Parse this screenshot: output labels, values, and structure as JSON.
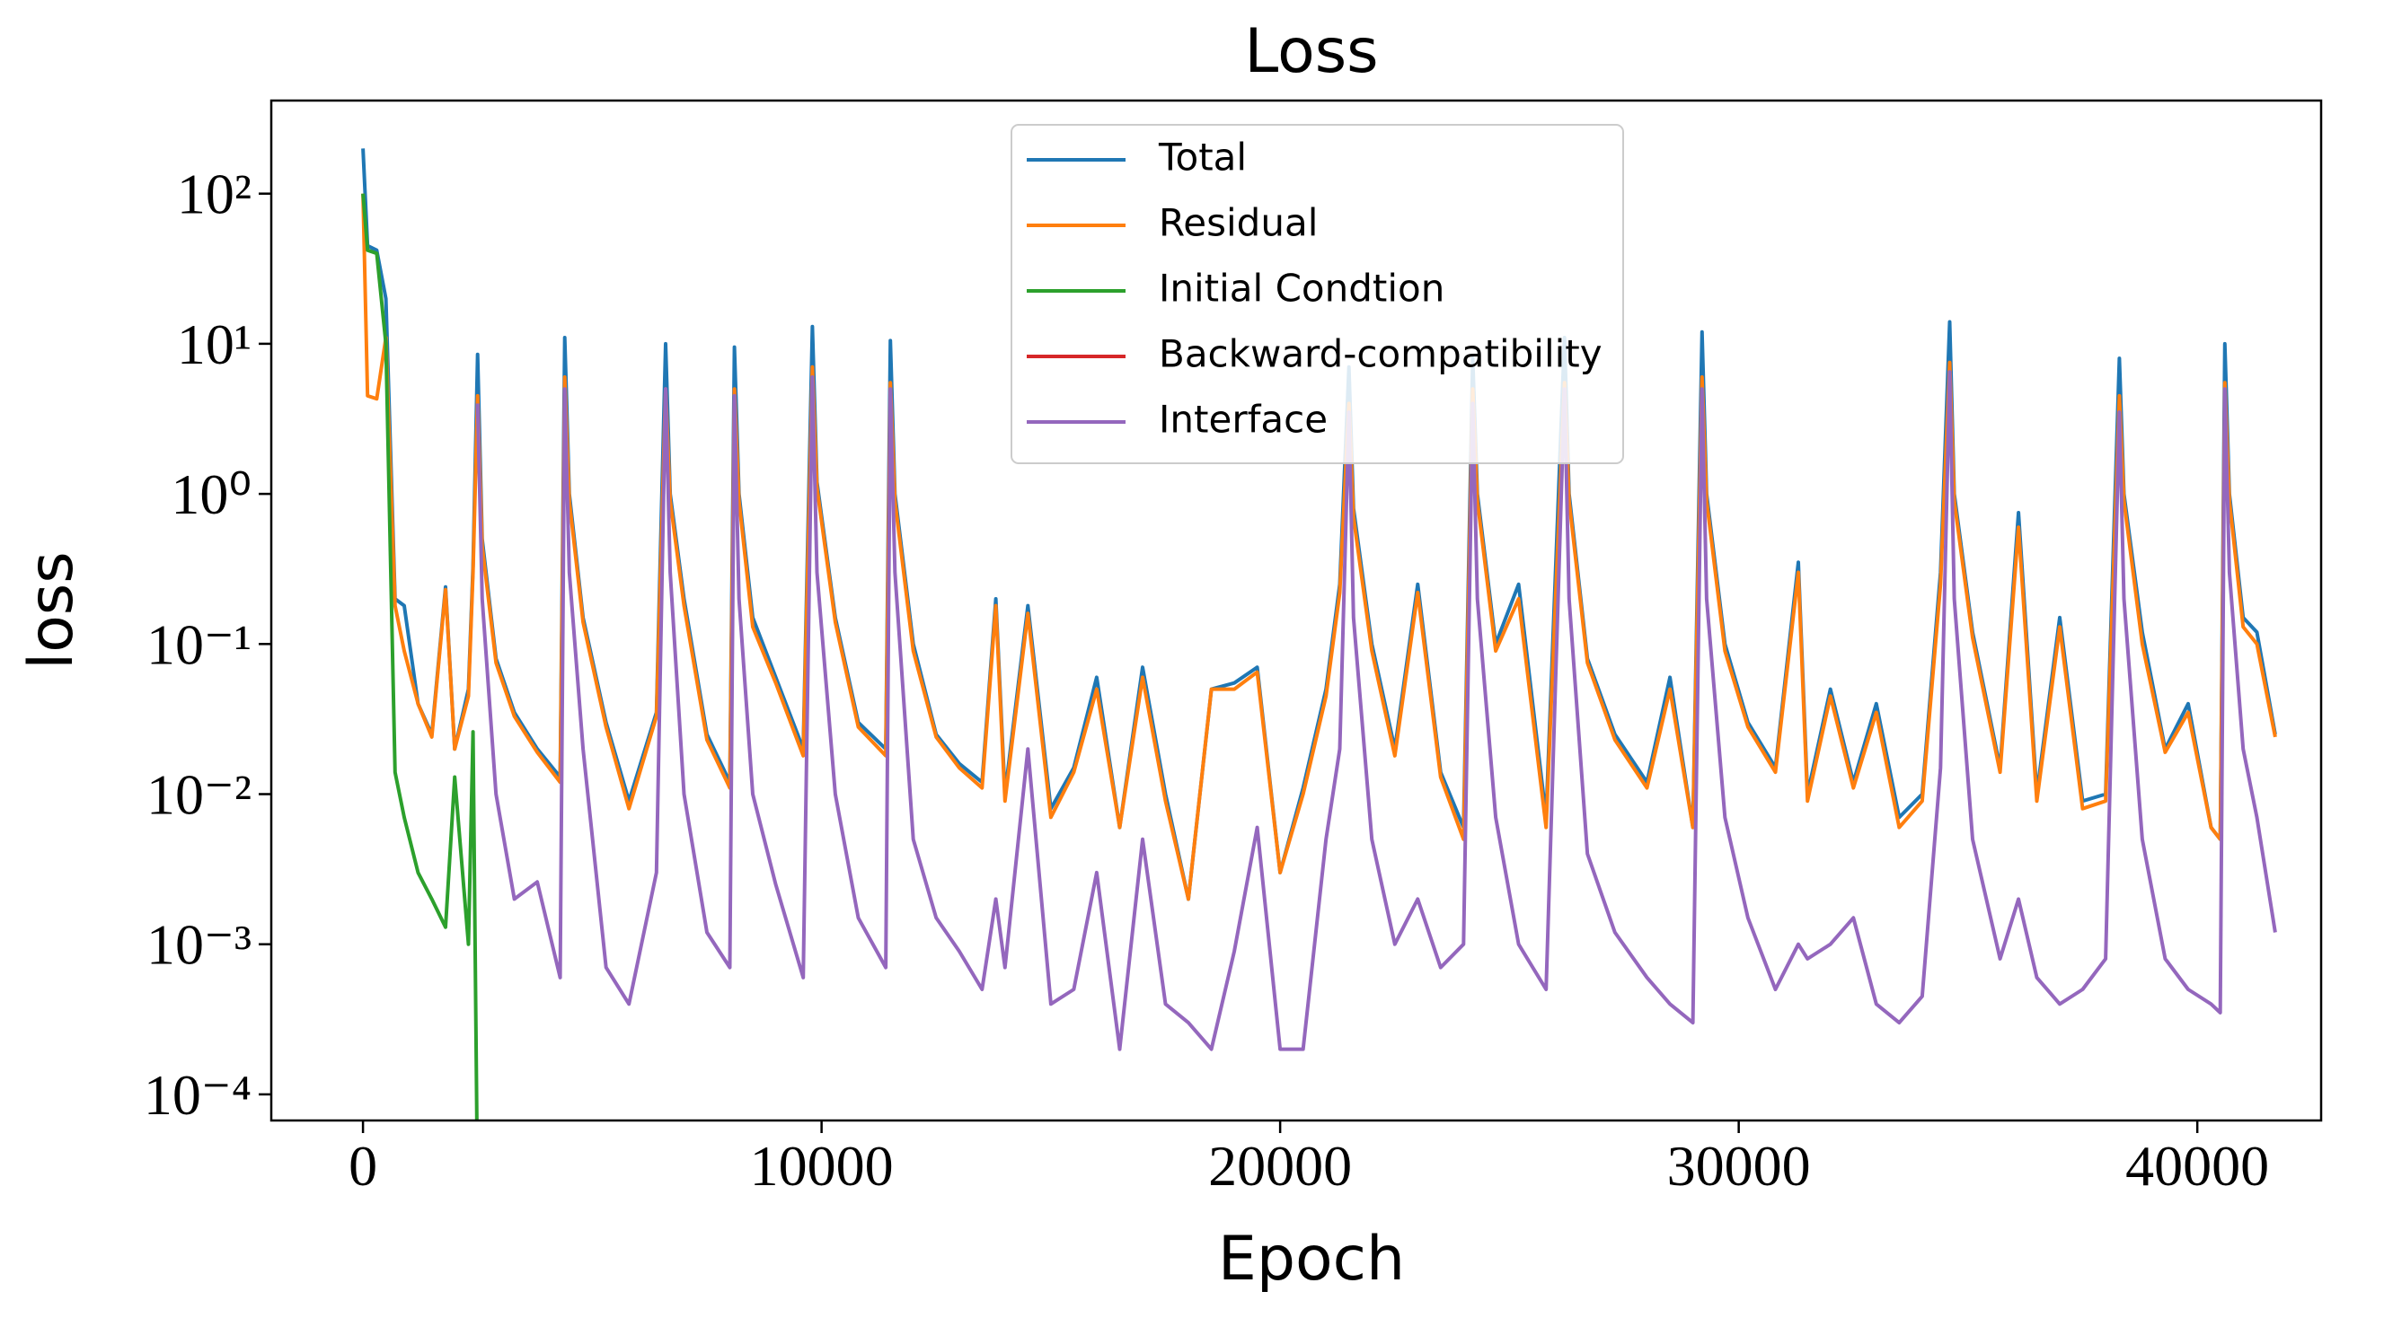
{
  "chart_data": {
    "type": "line",
    "title": "Loss",
    "x_label": "Epoch",
    "y_label": "loss",
    "yscale": "log",
    "grid": false,
    "legend": "upper center",
    "xlim": [
      -2000,
      42700
    ],
    "ylim": [
      6.7e-05,
      417
    ],
    "xticks": [
      0,
      10000,
      20000,
      30000,
      40000
    ],
    "yticks": [
      {
        "value": 0.0001,
        "label": "10⁻⁴"
      },
      {
        "value": 0.001,
        "label": "10⁻³"
      },
      {
        "value": 0.01,
        "label": "10⁻²"
      },
      {
        "value": 0.1,
        "label": "10⁻¹"
      },
      {
        "value": 1,
        "label": "10⁰"
      },
      {
        "value": 10,
        "label": "10¹"
      },
      {
        "value": 100,
        "label": "10²"
      }
    ],
    "x": [
      0,
      100,
      300,
      500,
      700,
      900,
      1200,
      1500,
      1800,
      2000,
      2300,
      2400,
      2500,
      2600,
      2900,
      3300,
      3800,
      4300,
      4400,
      4500,
      4800,
      5300,
      5800,
      6400,
      6600,
      6700,
      7000,
      7500,
      8000,
      8100,
      8200,
      8500,
      9000,
      9600,
      9800,
      9900,
      10300,
      10800,
      11400,
      11500,
      11600,
      12000,
      12500,
      13000,
      13500,
      13800,
      14000,
      14500,
      15000,
      15500,
      16000,
      16500,
      17000,
      17500,
      18000,
      18500,
      19000,
      19500,
      20000,
      20500,
      21000,
      21300,
      21500,
      21600,
      22000,
      22500,
      23000,
      23500,
      24000,
      24200,
      24300,
      24700,
      25200,
      25800,
      26200,
      26300,
      26700,
      27300,
      28000,
      28500,
      29000,
      29200,
      29300,
      29700,
      30200,
      30800,
      31300,
      31500,
      32000,
      32500,
      33000,
      33500,
      34000,
      34400,
      34600,
      34700,
      35100,
      35700,
      36100,
      36500,
      37000,
      37500,
      38000,
      38300,
      38400,
      38800,
      39300,
      39800,
      40300,
      40500,
      40600,
      40700,
      41000,
      41300,
      41700
    ],
    "series": [
      {
        "name": "Total",
        "color": "#1f77b4",
        "values": [
          200,
          45,
          42,
          20,
          0.2,
          0.18,
          0.04,
          0.025,
          0.24,
          0.02,
          0.05,
          0.33,
          8.5,
          0.5,
          0.08,
          0.035,
          0.02,
          0.013,
          11,
          1,
          0.15,
          0.03,
          0.009,
          0.035,
          10,
          1,
          0.2,
          0.025,
          0.012,
          9.5,
          1,
          0.15,
          0.06,
          0.02,
          13,
          1.2,
          0.15,
          0.03,
          0.02,
          10.5,
          1,
          0.1,
          0.025,
          0.016,
          0.012,
          0.2,
          0.01,
          0.18,
          0.008,
          0.015,
          0.06,
          0.006,
          0.07,
          0.01,
          0.002,
          0.05,
          0.055,
          0.07,
          0.003,
          0.011,
          0.05,
          0.25,
          7,
          0.8,
          0.1,
          0.02,
          0.25,
          0.014,
          0.006,
          8,
          1,
          0.1,
          0.25,
          0.007,
          11,
          1,
          0.08,
          0.025,
          0.012,
          0.06,
          0.006,
          12,
          1,
          0.1,
          0.03,
          0.015,
          0.35,
          0.01,
          0.05,
          0.012,
          0.04,
          0.007,
          0.01,
          0.3,
          14,
          1,
          0.12,
          0.015,
          0.75,
          0.01,
          0.15,
          0.009,
          0.01,
          8,
          1,
          0.12,
          0.02,
          0.04,
          0.006,
          0.005,
          10,
          1,
          0.15,
          0.12,
          0.025
        ]
      },
      {
        "name": "Residual",
        "color": "#ff7f0e",
        "values": [
          100,
          4.5,
          4.3,
          11,
          0.18,
          0.09,
          0.04,
          0.024,
          0.23,
          0.02,
          0.045,
          0.3,
          4.5,
          0.45,
          0.075,
          0.033,
          0.019,
          0.012,
          6,
          0.9,
          0.14,
          0.028,
          0.008,
          0.033,
          5,
          0.9,
          0.18,
          0.023,
          0.011,
          5,
          0.9,
          0.13,
          0.055,
          0.018,
          7,
          1.1,
          0.14,
          0.028,
          0.018,
          5.5,
          0.9,
          0.09,
          0.024,
          0.015,
          0.011,
          0.18,
          0.009,
          0.16,
          0.007,
          0.014,
          0.05,
          0.006,
          0.06,
          0.009,
          0.002,
          0.05,
          0.05,
          0.065,
          0.003,
          0.01,
          0.045,
          0.22,
          4,
          0.7,
          0.09,
          0.018,
          0.22,
          0.013,
          0.005,
          5,
          0.9,
          0.09,
          0.2,
          0.006,
          5.5,
          0.9,
          0.075,
          0.023,
          0.011,
          0.05,
          0.006,
          6,
          0.9,
          0.09,
          0.028,
          0.014,
          0.3,
          0.009,
          0.045,
          0.011,
          0.035,
          0.006,
          0.009,
          0.25,
          7.5,
          0.9,
          0.11,
          0.014,
          0.6,
          0.009,
          0.13,
          0.008,
          0.009,
          4.5,
          0.9,
          0.1,
          0.019,
          0.035,
          0.006,
          0.005,
          5.5,
          0.9,
          0.13,
          0.1,
          0.024
        ]
      },
      {
        "name": "Initial Condtion",
        "color": "#2ca02c",
        "values": [
          100,
          42,
          40,
          10,
          0.014,
          0.007,
          0.003,
          0.002,
          0.0013,
          0.013,
          0.001,
          0.026,
          2e-05,
          null,
          null,
          null,
          null,
          null,
          null,
          null,
          null,
          null,
          null,
          null,
          null,
          null,
          null,
          null,
          null,
          null,
          null,
          null,
          null,
          null,
          null,
          null,
          null,
          null,
          null,
          null,
          null,
          null,
          null,
          null,
          null,
          null,
          null,
          null,
          null,
          null,
          null,
          null,
          null,
          null,
          null,
          null,
          null,
          null,
          null,
          null,
          null,
          null,
          null,
          null,
          null,
          null,
          null,
          null,
          null,
          null,
          null,
          null,
          null,
          null,
          null,
          null,
          null,
          null,
          null,
          null,
          null,
          null,
          null,
          null,
          null,
          null,
          null,
          null,
          null,
          null,
          null,
          null,
          null,
          null,
          null,
          null,
          null,
          null,
          null,
          null,
          null,
          null,
          null,
          null,
          null,
          null,
          null,
          null,
          null,
          null,
          null,
          null,
          null,
          null,
          null
        ]
      },
      {
        "name": "Backward-compatibility",
        "color": "#d62728",
        "values": [
          null,
          null,
          null,
          null,
          null,
          null,
          null,
          null,
          null,
          null,
          null,
          null,
          null,
          null,
          null,
          null,
          null,
          null,
          null,
          null,
          null,
          null,
          null,
          null,
          null,
          null,
          null,
          null,
          null,
          null,
          null,
          null,
          null,
          null,
          null,
          null,
          null,
          null,
          null,
          null,
          null,
          null,
          null,
          null,
          null,
          null,
          null,
          null,
          null,
          null,
          null,
          null,
          null,
          null,
          null,
          null,
          null,
          null,
          null,
          null,
          null,
          null,
          null,
          null,
          null,
          null,
          null,
          null,
          null,
          null,
          null,
          null,
          null,
          null,
          null,
          null,
          null,
          null,
          null,
          null,
          null,
          null,
          null,
          null,
          null,
          null,
          null,
          null,
          null,
          null,
          null,
          null,
          null,
          null,
          null,
          null,
          null,
          null,
          null,
          null,
          null,
          null,
          null,
          null,
          null,
          null,
          null,
          null,
          null,
          null,
          null,
          null,
          null,
          null,
          null
        ]
      },
      {
        "name": "Interface",
        "color": "#9467bd",
        "values": [
          null,
          null,
          null,
          null,
          null,
          null,
          null,
          null,
          null,
          null,
          null,
          null,
          4,
          0.2,
          0.01,
          0.002,
          0.0026,
          0.0006,
          5,
          0.3,
          0.02,
          0.0007,
          0.0004,
          0.003,
          5,
          0.3,
          0.01,
          0.0012,
          0.0007,
          4.5,
          0.2,
          0.01,
          0.0025,
          0.0006,
          6,
          0.3,
          0.01,
          0.0015,
          0.0007,
          5,
          0.3,
          0.005,
          0.0015,
          0.0009,
          0.0005,
          0.002,
          0.0007,
          0.02,
          0.0004,
          0.0005,
          0.003,
          0.0002,
          0.005,
          0.0004,
          0.0003,
          0.0002,
          0.0009,
          0.006,
          0.0002,
          0.0002,
          0.005,
          0.02,
          3.5,
          0.15,
          0.005,
          0.001,
          0.002,
          0.0007,
          0.001,
          4,
          0.2,
          0.007,
          0.001,
          0.0005,
          5,
          0.2,
          0.004,
          0.0012,
          0.0006,
          0.0004,
          0.0003,
          5,
          0.2,
          0.007,
          0.0015,
          0.0005,
          0.001,
          0.0008,
          0.001,
          0.0015,
          0.0004,
          0.0003,
          0.00045,
          0.015,
          6.5,
          0.2,
          0.005,
          0.0008,
          0.002,
          0.0006,
          0.0004,
          0.0005,
          0.0008,
          3.5,
          0.2,
          0.005,
          0.0008,
          0.0005,
          0.0004,
          0.00035,
          5,
          0.3,
          0.02,
          0.007,
          0.0012
        ]
      }
    ]
  }
}
